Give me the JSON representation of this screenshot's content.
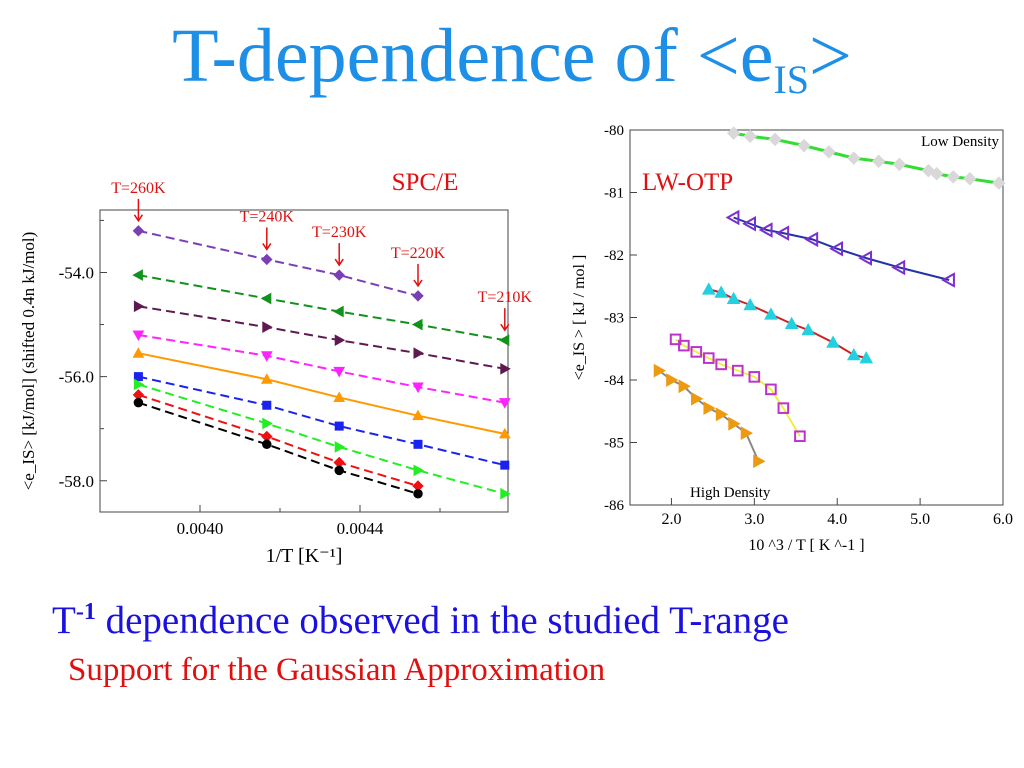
{
  "title": {
    "main": "T-dependence of <e",
    "sub": "IS",
    "close": ">"
  },
  "bullets": {
    "line1_base": "T",
    "line1_sup": "-1",
    "line1_rest": " dependence observed in the studied T-range",
    "line2": "Support for the Gaussian Approximation"
  },
  "colors": {
    "title": "#1e8fe6",
    "line1": "#1a10e0",
    "line2": "#e01010",
    "annotation": "#e01010"
  },
  "chart_data": [
    {
      "type": "line",
      "label": "SPC/E",
      "xlabel": "1/T   [K⁻¹]",
      "ylabel": "<e_IS> [kJ/mol] (shifted 0.4n kJ/mol)",
      "xlim": [
        0.00375,
        0.00477
      ],
      "ylim": [
        -58.6,
        -52.8
      ],
      "xticks": [
        0.004,
        0.0044
      ],
      "xtick_labels": [
        "0.0040",
        "0.0044"
      ],
      "yticks": [
        -54.0,
        -56.0,
        -58.0
      ],
      "ytick_labels": [
        "-54.0",
        "-56.0",
        "-58.0"
      ],
      "temperature_labels": [
        {
          "text": "T=260K",
          "x": 0.003846
        },
        {
          "text": "T=240K",
          "x": 0.004167
        },
        {
          "text": "T=230K",
          "x": 0.004348
        },
        {
          "text": "T=220K",
          "x": 0.004545
        },
        {
          "text": "T=210K",
          "x": 0.004762
        }
      ],
      "series": [
        {
          "color": "#7a3fb4",
          "marker": "diamond",
          "dashed": true,
          "points": [
            [
              0.003846,
              -53.2
            ],
            [
              0.004167,
              -53.75
            ],
            [
              0.004348,
              -54.05
            ],
            [
              0.004545,
              -54.45
            ]
          ]
        },
        {
          "color": "#12921c",
          "marker": "triangle-left",
          "dashed": true,
          "points": [
            [
              0.003846,
              -54.05
            ],
            [
              0.004167,
              -54.5
            ],
            [
              0.004348,
              -54.75
            ],
            [
              0.004545,
              -55.0
            ],
            [
              0.004762,
              -55.3
            ]
          ]
        },
        {
          "color": "#5e1a50",
          "marker": "triangle-right",
          "dashed": true,
          "points": [
            [
              0.003846,
              -54.65
            ],
            [
              0.004167,
              -55.05
            ],
            [
              0.004348,
              -55.3
            ],
            [
              0.004545,
              -55.55
            ],
            [
              0.004762,
              -55.85
            ]
          ]
        },
        {
          "color": "#ff22ff",
          "marker": "triangle-down",
          "dashed": true,
          "points": [
            [
              0.003846,
              -55.2
            ],
            [
              0.004167,
              -55.6
            ],
            [
              0.004348,
              -55.9
            ],
            [
              0.004545,
              -56.2
            ],
            [
              0.004762,
              -56.5
            ]
          ]
        },
        {
          "color": "#ff9900",
          "marker": "triangle-up",
          "dashed": false,
          "points": [
            [
              0.003846,
              -55.55
            ],
            [
              0.004167,
              -56.05
            ],
            [
              0.004348,
              -56.4
            ],
            [
              0.004545,
              -56.75
            ],
            [
              0.004762,
              -57.1
            ]
          ]
        },
        {
          "color": "#1a22ee",
          "marker": "square",
          "dashed": true,
          "points": [
            [
              0.003846,
              -56.0
            ],
            [
              0.004167,
              -56.55
            ],
            [
              0.004348,
              -56.95
            ],
            [
              0.004545,
              -57.3
            ],
            [
              0.004762,
              -57.7
            ]
          ]
        },
        {
          "color": "#22ee22",
          "marker": "triangle-right",
          "dashed": true,
          "points": [
            [
              0.003846,
              -56.15
            ],
            [
              0.004167,
              -56.9
            ],
            [
              0.004348,
              -57.35
            ],
            [
              0.004545,
              -57.8
            ],
            [
              0.004762,
              -58.25
            ]
          ]
        },
        {
          "color": "#ee1111",
          "marker": "diamond",
          "dashed": true,
          "points": [
            [
              0.003846,
              -56.35
            ],
            [
              0.004167,
              -57.15
            ],
            [
              0.004348,
              -57.65
            ],
            [
              0.004545,
              -58.1
            ]
          ]
        },
        {
          "color": "#000000",
          "marker": "circle",
          "dashed": true,
          "points": [
            [
              0.003846,
              -56.5
            ],
            [
              0.004167,
              -57.3
            ],
            [
              0.004348,
              -57.8
            ],
            [
              0.004545,
              -58.25
            ]
          ]
        }
      ]
    },
    {
      "type": "line",
      "label": "LW-OTP",
      "xlabel": "10 ^3 / T [ K ^-1 ]",
      "ylabel": "<e_IS > [ kJ / mol ]",
      "xlim": [
        1.5,
        6.0
      ],
      "ylim": [
        -86,
        -80
      ],
      "xticks": [
        2.0,
        3.0,
        4.0,
        5.0,
        6.0
      ],
      "xtick_labels": [
        "2.0",
        "3.0",
        "4.0",
        "5.0",
        "6.0"
      ],
      "yticks": [
        -80,
        -81,
        -82,
        -83,
        -84,
        -85,
        -86
      ],
      "ytick_labels": [
        "-80",
        "-81",
        "-82",
        "-83",
        "-84",
        "-85",
        "-86"
      ],
      "annotations": [
        "Low Density",
        "High Density"
      ],
      "series": [
        {
          "color": "#d8d8d8",
          "marker": "diamond",
          "fill": true,
          "line": "#33dd33",
          "lineWidth": 3,
          "points": [
            [
              2.75,
              -80.05
            ],
            [
              2.95,
              -80.1
            ],
            [
              3.25,
              -80.15
            ],
            [
              3.6,
              -80.25
            ],
            [
              3.9,
              -80.35
            ],
            [
              4.2,
              -80.45
            ],
            [
              4.5,
              -80.5
            ],
            [
              4.75,
              -80.55
            ],
            [
              5.1,
              -80.65
            ],
            [
              5.2,
              -80.7
            ],
            [
              5.4,
              -80.75
            ],
            [
              5.6,
              -80.78
            ],
            [
              5.95,
              -80.85
            ]
          ]
        },
        {
          "color": "#7a2fd0",
          "marker": "triangle-left",
          "fill": false,
          "line": "#2233aa",
          "lineWidth": 2,
          "points": [
            [
              2.75,
              -81.4
            ],
            [
              2.95,
              -81.5
            ],
            [
              3.15,
              -81.6
            ],
            [
              3.35,
              -81.65
            ],
            [
              3.7,
              -81.75
            ],
            [
              4.0,
              -81.9
            ],
            [
              4.35,
              -82.05
            ],
            [
              4.75,
              -82.2
            ],
            [
              5.35,
              -82.4
            ]
          ]
        },
        {
          "color": "#22d0e0",
          "marker": "triangle-up",
          "fill": true,
          "line": "#cc2222",
          "lineWidth": 2,
          "points": [
            [
              2.45,
              -82.55
            ],
            [
              2.6,
              -82.6
            ],
            [
              2.75,
              -82.7
            ],
            [
              2.95,
              -82.8
            ],
            [
              3.2,
              -82.95
            ],
            [
              3.45,
              -83.1
            ],
            [
              3.65,
              -83.2
            ],
            [
              3.95,
              -83.4
            ],
            [
              4.2,
              -83.6
            ],
            [
              4.35,
              -83.65
            ]
          ]
        },
        {
          "color": "#bb33cc",
          "marker": "square",
          "fill": false,
          "line": "#eeee44",
          "lineWidth": 2,
          "points": [
            [
              2.05,
              -83.35
            ],
            [
              2.15,
              -83.45
            ],
            [
              2.3,
              -83.55
            ],
            [
              2.45,
              -83.65
            ],
            [
              2.6,
              -83.75
            ],
            [
              2.8,
              -83.85
            ],
            [
              3.0,
              -83.95
            ],
            [
              3.2,
              -84.15
            ],
            [
              3.35,
              -84.45
            ],
            [
              3.55,
              -84.9
            ]
          ]
        },
        {
          "color": "#ee9a10",
          "marker": "triangle-right",
          "fill": true,
          "line": "#888888",
          "lineWidth": 2,
          "points": [
            [
              1.85,
              -83.85
            ],
            [
              2.0,
              -84.0
            ],
            [
              2.15,
              -84.1
            ],
            [
              2.3,
              -84.3
            ],
            [
              2.45,
              -84.45
            ],
            [
              2.6,
              -84.55
            ],
            [
              2.75,
              -84.7
            ],
            [
              2.9,
              -84.85
            ],
            [
              3.05,
              -85.3
            ]
          ]
        }
      ]
    }
  ]
}
